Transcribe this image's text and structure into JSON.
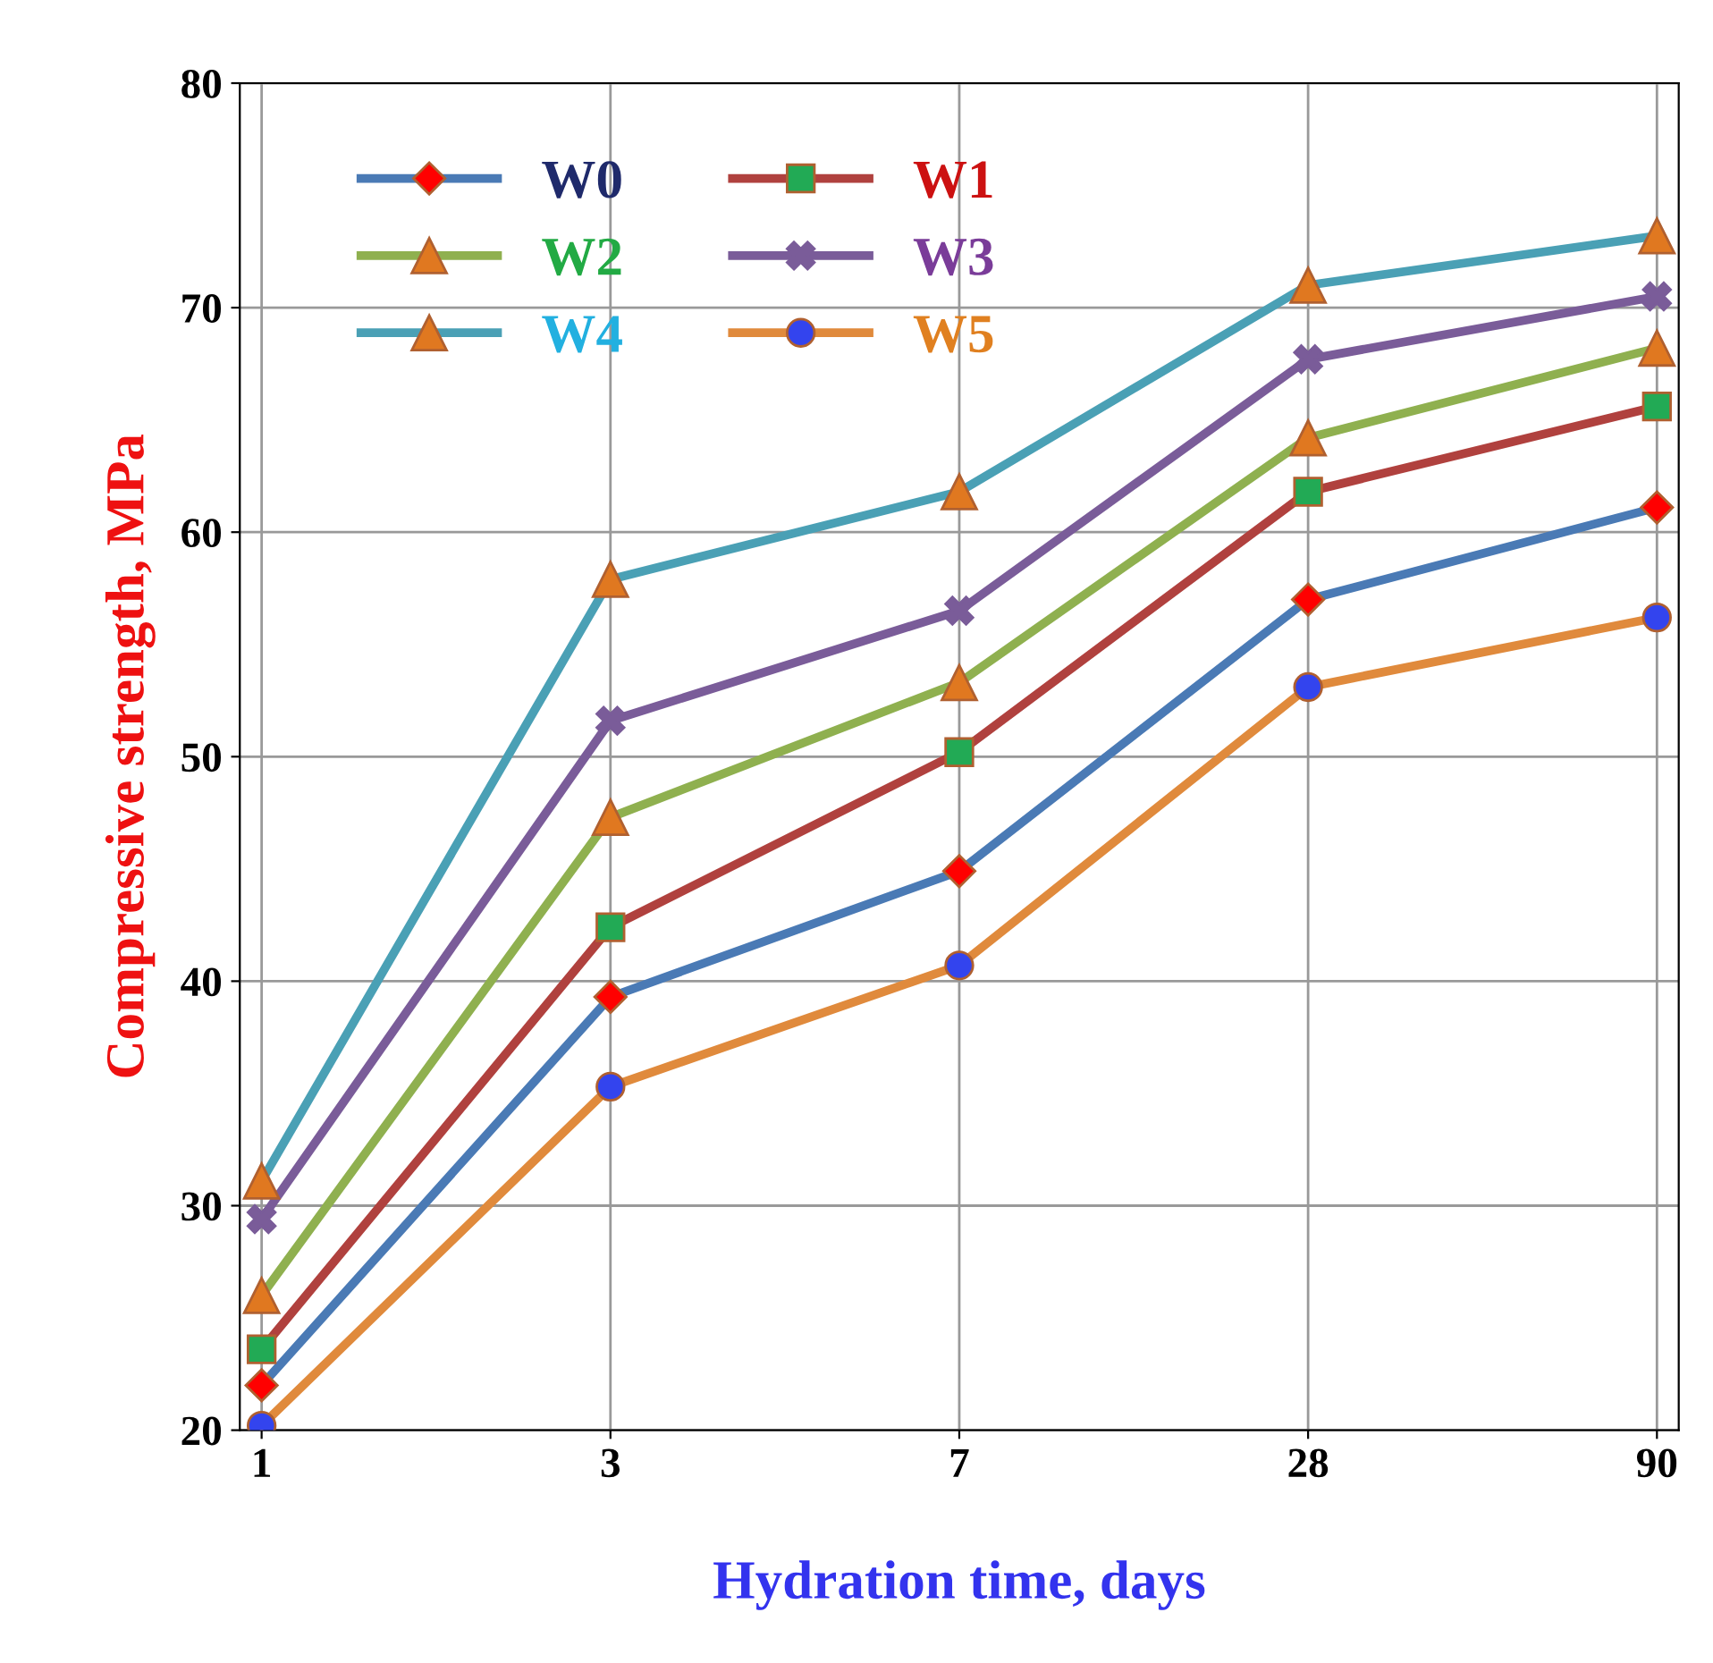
{
  "chart_data": {
    "type": "line",
    "xlabel": "Hydration time, days",
    "ylabel": "Compressive strength, MPa",
    "categories": [
      "1",
      "3",
      "7",
      "28",
      "90"
    ],
    "ylim": [
      20,
      80
    ],
    "yticks": [
      20,
      30,
      40,
      50,
      60,
      70,
      80
    ],
    "grid": true,
    "legend": "top left",
    "series": [
      {
        "name": "W0",
        "color": "#4a7ab5",
        "marker": "diamond",
        "values": [
          22.0,
          39.3,
          44.9,
          57.0,
          61.1
        ]
      },
      {
        "name": "W1",
        "color": "#b0413e",
        "marker": "square",
        "values": [
          23.6,
          42.4,
          50.2,
          61.8,
          65.6
        ]
      },
      {
        "name": "W2",
        "color": "#8fb04f",
        "marker": "triangle",
        "values": [
          26.0,
          47.3,
          53.3,
          64.2,
          68.2
        ]
      },
      {
        "name": "W3",
        "color": "#7a5c99",
        "marker": "cross",
        "values": [
          29.4,
          51.6,
          56.5,
          67.7,
          70.5
        ]
      },
      {
        "name": "W4",
        "color": "#4aa0b5",
        "marker": "triangle",
        "values": [
          31.1,
          57.9,
          61.8,
          71.0,
          73.2
        ]
      },
      {
        "name": "W5",
        "color": "#e08a3c",
        "marker": "circle",
        "values": [
          20.2,
          35.3,
          40.7,
          53.1,
          56.2
        ]
      }
    ]
  }
}
